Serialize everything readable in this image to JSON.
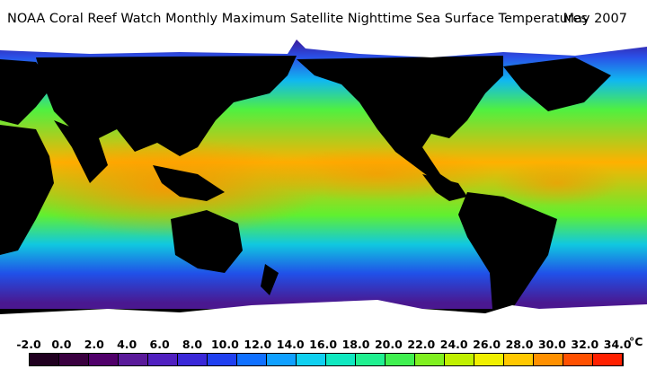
{
  "title": "NOAA Coral Reef Watch Monthly Maximum Satellite Nighttime Sea Surface Temperatures",
  "date": "May 2007",
  "legend": {
    "ticks": [
      "-2.0",
      "0.0",
      "2.0",
      "4.0",
      "6.0",
      "8.0",
      "10.0",
      "12.0",
      "14.0",
      "16.0",
      "18.0",
      "20.0",
      "22.0",
      "24.0",
      "26.0",
      "28.0",
      "30.0",
      "32.0",
      "34.0"
    ],
    "unit": "°C",
    "colors": [
      "#200020",
      "#3a0040",
      "#50006a",
      "#5a1a9a",
      "#5020c0",
      "#3a28d8",
      "#2040f0",
      "#1070ff",
      "#10a0ff",
      "#10d0f0",
      "#10e8c0",
      "#20f090",
      "#40f050",
      "#80f020",
      "#c0f000",
      "#f0f000",
      "#ffc800",
      "#ff9000",
      "#ff5000",
      "#ff2000"
    ]
  },
  "map": {
    "ocean_bands": [
      {
        "label": "arctic",
        "color": "#3a1a9a"
      },
      {
        "label": "north-cold",
        "color": "#2a50e8"
      },
      {
        "label": "north-temperate",
        "color": "#10b8f0"
      },
      {
        "label": "north-subtropic",
        "color": "#50f040"
      },
      {
        "label": "tropic",
        "color": "#ffb000"
      },
      {
        "label": "south-subtropic",
        "color": "#60f030"
      },
      {
        "label": "south-temperate",
        "color": "#10c8e0"
      },
      {
        "label": "south-cold",
        "color": "#2050e8"
      },
      {
        "label": "antarctic",
        "color": "#4a1890"
      }
    ],
    "land_color": "#000000",
    "ice_color": "#ffffff"
  }
}
